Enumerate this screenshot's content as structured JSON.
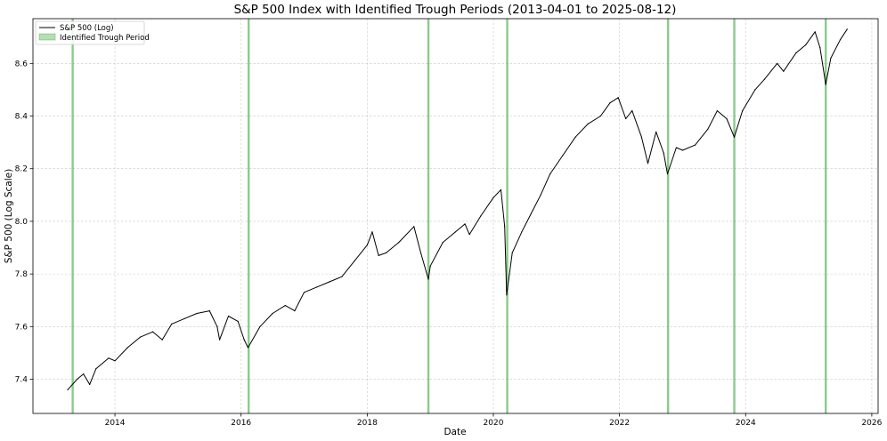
{
  "chart_data": {
    "type": "line",
    "title": "S&P 500 Index with Identified Trough Periods (2013-04-01 to 2025-08-12)",
    "xlabel": "Date",
    "ylabel": "S&P 500 (Log Scale)",
    "xlim": [
      2012.7,
      2026.1
    ],
    "ylim": [
      7.27,
      8.77
    ],
    "x_ticks": [
      2014,
      2016,
      2018,
      2020,
      2022,
      2024,
      2026
    ],
    "x_tick_labels": [
      "2014",
      "2016",
      "2018",
      "2020",
      "2022",
      "2024",
      "2026"
    ],
    "y_ticks": [
      7.4,
      7.6,
      7.8,
      8.0,
      8.2,
      8.4,
      8.6
    ],
    "y_tick_labels": [
      "7.4",
      "7.6",
      "7.8",
      "8.0",
      "8.2",
      "8.4",
      "8.6"
    ],
    "grid": true,
    "legend": {
      "placement": "top-left",
      "entries": [
        {
          "label": "S&P 500 (Log)",
          "kind": "line",
          "color": "#000000"
        },
        {
          "label": "Identified Trough Period",
          "kind": "patch",
          "color": "#2ca02c"
        }
      ]
    },
    "series": [
      {
        "name": "S&P 500 (Log)",
        "color": "#000000",
        "points": [
          [
            2013.25,
            7.36
          ],
          [
            2013.4,
            7.4
          ],
          [
            2013.5,
            7.42
          ],
          [
            2013.6,
            7.38
          ],
          [
            2013.7,
            7.44
          ],
          [
            2013.9,
            7.48
          ],
          [
            2014.0,
            7.47
          ],
          [
            2014.2,
            7.52
          ],
          [
            2014.4,
            7.56
          ],
          [
            2014.6,
            7.58
          ],
          [
            2014.75,
            7.55
          ],
          [
            2014.9,
            7.61
          ],
          [
            2015.1,
            7.63
          ],
          [
            2015.3,
            7.65
          ],
          [
            2015.5,
            7.66
          ],
          [
            2015.62,
            7.6
          ],
          [
            2015.66,
            7.55
          ],
          [
            2015.8,
            7.64
          ],
          [
            2015.95,
            7.62
          ],
          [
            2016.05,
            7.55
          ],
          [
            2016.11,
            7.52
          ],
          [
            2016.3,
            7.6
          ],
          [
            2016.5,
            7.65
          ],
          [
            2016.7,
            7.68
          ],
          [
            2016.85,
            7.66
          ],
          [
            2017.0,
            7.73
          ],
          [
            2017.2,
            7.75
          ],
          [
            2017.4,
            7.77
          ],
          [
            2017.6,
            7.79
          ],
          [
            2017.8,
            7.85
          ],
          [
            2018.0,
            7.91
          ],
          [
            2018.08,
            7.96
          ],
          [
            2018.18,
            7.87
          ],
          [
            2018.3,
            7.88
          ],
          [
            2018.5,
            7.92
          ],
          [
            2018.74,
            7.98
          ],
          [
            2018.85,
            7.88
          ],
          [
            2018.97,
            7.78
          ],
          [
            2019.0,
            7.83
          ],
          [
            2019.2,
            7.92
          ],
          [
            2019.4,
            7.96
          ],
          [
            2019.55,
            7.99
          ],
          [
            2019.62,
            7.95
          ],
          [
            2019.8,
            8.02
          ],
          [
            2020.0,
            8.09
          ],
          [
            2020.12,
            8.12
          ],
          [
            2020.18,
            7.98
          ],
          [
            2020.21,
            7.72
          ],
          [
            2020.3,
            7.88
          ],
          [
            2020.45,
            7.96
          ],
          [
            2020.6,
            8.03
          ],
          [
            2020.75,
            8.1
          ],
          [
            2020.9,
            8.18
          ],
          [
            2021.1,
            8.25
          ],
          [
            2021.3,
            8.32
          ],
          [
            2021.5,
            8.37
          ],
          [
            2021.7,
            8.4
          ],
          [
            2021.85,
            8.45
          ],
          [
            2021.98,
            8.47
          ],
          [
            2022.1,
            8.39
          ],
          [
            2022.2,
            8.42
          ],
          [
            2022.35,
            8.32
          ],
          [
            2022.45,
            8.22
          ],
          [
            2022.58,
            8.34
          ],
          [
            2022.7,
            8.26
          ],
          [
            2022.76,
            8.18
          ],
          [
            2022.9,
            8.28
          ],
          [
            2023.0,
            8.27
          ],
          [
            2023.2,
            8.29
          ],
          [
            2023.4,
            8.35
          ],
          [
            2023.55,
            8.42
          ],
          [
            2023.7,
            8.39
          ],
          [
            2023.82,
            8.32
          ],
          [
            2023.95,
            8.42
          ],
          [
            2024.15,
            8.5
          ],
          [
            2024.3,
            8.54
          ],
          [
            2024.5,
            8.6
          ],
          [
            2024.6,
            8.57
          ],
          [
            2024.8,
            8.64
          ],
          [
            2024.95,
            8.67
          ],
          [
            2025.1,
            8.72
          ],
          [
            2025.18,
            8.66
          ],
          [
            2025.27,
            8.52
          ],
          [
            2025.35,
            8.62
          ],
          [
            2025.5,
            8.69
          ],
          [
            2025.61,
            8.73
          ]
        ]
      }
    ],
    "trough_periods": [
      2013.33,
      2016.12,
      2018.97,
      2020.22,
      2022.77,
      2023.82,
      2025.27
    ]
  }
}
